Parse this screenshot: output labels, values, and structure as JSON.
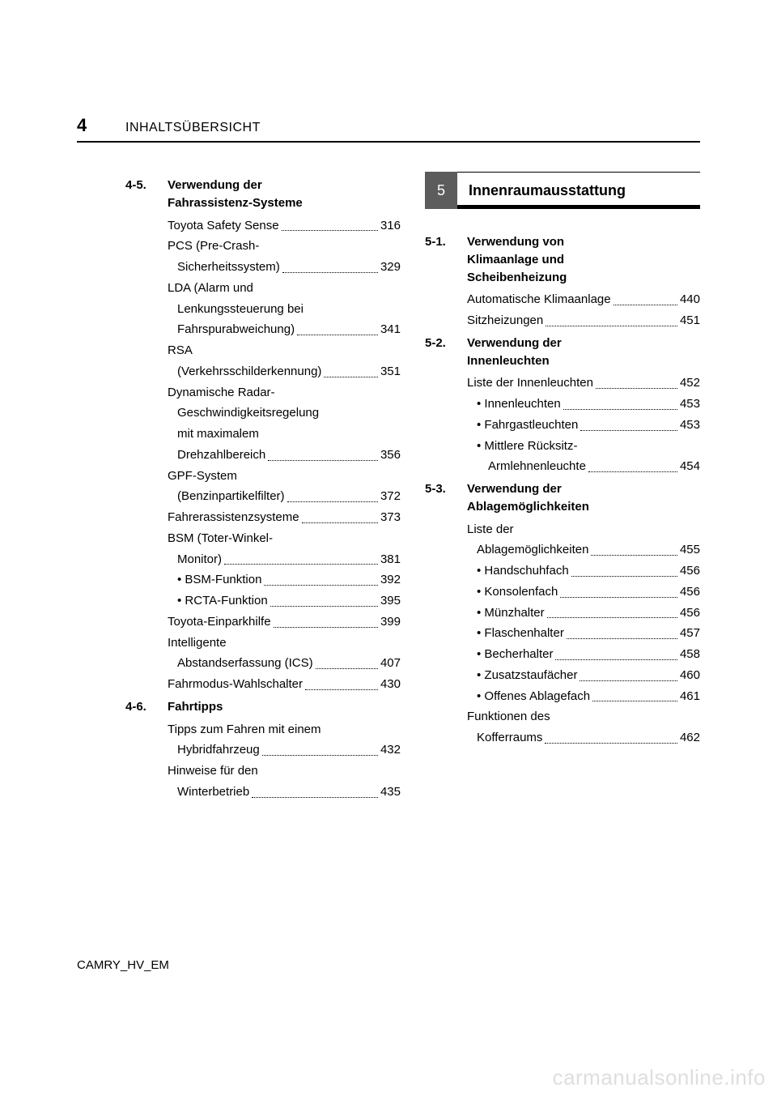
{
  "page_number": "4",
  "header_title": "INHALTSÜBERSICHT",
  "footer": "CAMRY_HV_EM",
  "watermark": "carmanualsonline.info",
  "left": {
    "sections": [
      {
        "num": "4-5.",
        "title_lines": [
          "Verwendung der",
          "Fahrassistenz-Systeme"
        ],
        "entries": [
          {
            "label_lines": [
              "Toyota Safety Sense"
            ],
            "page": "316"
          },
          {
            "label_lines": [
              "PCS (Pre-Crash-",
              "Sicherheitssystem)"
            ],
            "page": "329"
          },
          {
            "label_lines": [
              "LDA (Alarm und",
              "Lenkungssteuerung bei",
              "Fahrspurabweichung)"
            ],
            "page": "341"
          },
          {
            "label_lines": [
              "RSA",
              "(Verkehrsschilderkennung)"
            ],
            "page": "351"
          },
          {
            "label_lines": [
              "Dynamische Radar-",
              "Geschwindigkeitsregelung",
              "mit maximalem",
              "Drehzahlbereich"
            ],
            "page": "356"
          },
          {
            "label_lines": [
              "GPF-System",
              "(Benzinpartikelfilter)"
            ],
            "page": "372"
          },
          {
            "label_lines": [
              "Fahrerassistenzsysteme"
            ],
            "page": "373"
          },
          {
            "label_lines": [
              "BSM (Toter-Winkel-",
              "Monitor)"
            ],
            "page": "381",
            "bullets": [
              {
                "label": "BSM-Funktion",
                "page": "392"
              },
              {
                "label": "RCTA-Funktion",
                "page": "395"
              }
            ]
          },
          {
            "label_lines": [
              "Toyota-Einparkhilfe"
            ],
            "page": "399"
          },
          {
            "label_lines": [
              "Intelligente",
              "Abstandserfassung (ICS)"
            ],
            "page": "407"
          },
          {
            "label_lines": [
              "Fahrmodus-Wahlschalter"
            ],
            "page": "430"
          }
        ]
      },
      {
        "num": "4-6.",
        "title_lines": [
          "Fahrtipps"
        ],
        "entries": [
          {
            "label_lines": [
              "Tipps zum Fahren mit einem",
              "Hybridfahrzeug"
            ],
            "page": "432"
          },
          {
            "label_lines": [
              "Hinweise für den",
              "Winterbetrieb"
            ],
            "page": "435"
          }
        ]
      }
    ]
  },
  "right": {
    "chapter": {
      "num": "5",
      "title": "Innenraumausstattung"
    },
    "sections": [
      {
        "num": "5-1.",
        "title_lines": [
          "Verwendung von",
          "Klimaanlage und",
          "Scheibenheizung"
        ],
        "entries": [
          {
            "label_lines": [
              "Automatische Klimaanlage"
            ],
            "page": "440"
          },
          {
            "label_lines": [
              "Sitzheizungen"
            ],
            "page": "451"
          }
        ]
      },
      {
        "num": "5-2.",
        "title_lines": [
          "Verwendung der",
          "Innenleuchten"
        ],
        "entries": [
          {
            "label_lines": [
              "Liste der Innenleuchten"
            ],
            "page": "452",
            "bullets": [
              {
                "label": "Innenleuchten",
                "page": "453"
              },
              {
                "label": "Fahrgastleuchten",
                "page": "453"
              },
              {
                "label_lines": [
                  "Mittlere Rücksitz-",
                  "Armlehnenleuchte"
                ],
                "page": "454"
              }
            ]
          }
        ]
      },
      {
        "num": "5-3.",
        "title_lines": [
          "Verwendung der",
          "Ablagemöglichkeiten"
        ],
        "entries": [
          {
            "label_lines": [
              "Liste der",
              "Ablagemöglichkeiten"
            ],
            "page": "455",
            "bullets": [
              {
                "label": "Handschuhfach",
                "page": "456"
              },
              {
                "label": "Konsolenfach",
                "page": "456"
              },
              {
                "label": "Münzhalter",
                "page": "456"
              },
              {
                "label": "Flaschenhalter",
                "page": "457"
              },
              {
                "label": "Becherhalter",
                "page": "458"
              },
              {
                "label": "Zusatzstaufächer",
                "page": "460"
              },
              {
                "label": "Offenes Ablagefach",
                "page": "461"
              }
            ]
          },
          {
            "label_lines": [
              "Funktionen des",
              "Kofferraums"
            ],
            "page": "462"
          }
        ]
      }
    ]
  }
}
